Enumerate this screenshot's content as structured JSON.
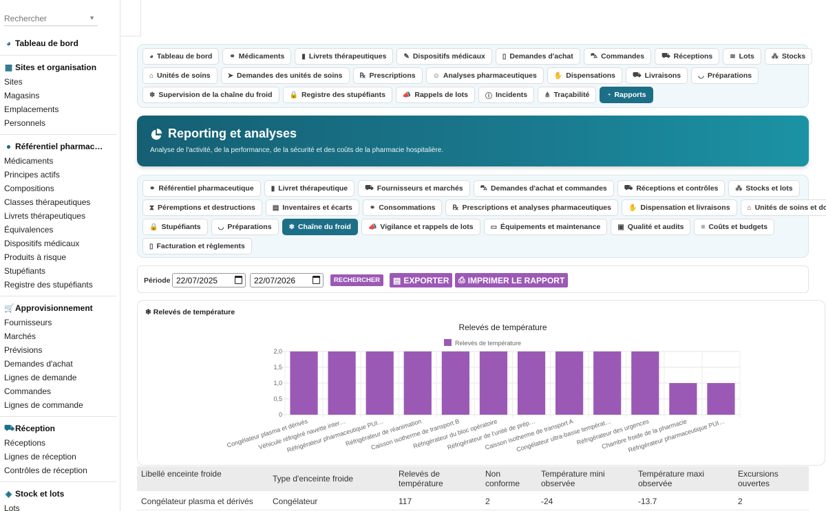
{
  "search": {
    "placeholder": "Rechercher"
  },
  "sidebar": {
    "dashboard": "Tableau de bord",
    "sections": [
      {
        "title": "Sites et organisation",
        "icon": "building-icon",
        "items": [
          "Sites",
          "Magasins",
          "Emplacements",
          "Personnels"
        ]
      },
      {
        "title": "Référentiel pharmac…",
        "icon": "pills-icon",
        "items": [
          "Médicaments",
          "Principes actifs",
          "Compositions",
          "Classes thérapeutiques",
          "Livrets thérapeutiques",
          "Équivalences",
          "Dispositifs médicaux",
          "Produits à risque",
          "Stupéfiants",
          "Registre des stupéfiants"
        ]
      },
      {
        "title": "Approvisionnement",
        "icon": "cart-icon",
        "items": [
          "Fournisseurs",
          "Marchés",
          "Prévisions",
          "Demandes d'achat",
          "Lignes de demande",
          "Commandes",
          "Lignes de commande"
        ]
      },
      {
        "title": "Réception",
        "icon": "truck-loading-icon",
        "items": [
          "Réceptions",
          "Lignes de réception",
          "Contrôles de réception"
        ]
      },
      {
        "title": "Stock et lots",
        "icon": "cubes-icon",
        "items": [
          "Lots"
        ]
      }
    ]
  },
  "nav1": {
    "rows": [
      [
        {
          "label": "Tableau de bord",
          "icon": "gauge-icon"
        },
        {
          "label": "Médicaments",
          "icon": "pills-icon"
        },
        {
          "label": "Livrets thérapeutiques",
          "icon": "book-icon"
        },
        {
          "label": "Dispositifs médicaux",
          "icon": "syringe-icon"
        },
        {
          "label": "Demandes d'achat",
          "icon": "file-icon"
        },
        {
          "label": "Commandes",
          "icon": "cart-icon"
        },
        {
          "label": "Réceptions",
          "icon": "truck-loading-icon"
        },
        {
          "label": "Lots",
          "icon": "layers-icon"
        },
        {
          "label": "Stocks",
          "icon": "cubes-icon"
        }
      ],
      [
        {
          "label": "Unités de soins",
          "icon": "bed-icon"
        },
        {
          "label": "Demandes des unités de soins",
          "icon": "send-icon"
        },
        {
          "label": "Prescriptions",
          "icon": "prescription-icon"
        },
        {
          "label": "Analyses pharmaceutiques",
          "icon": "user-check-icon"
        },
        {
          "label": "Dispensations",
          "icon": "hand-icon"
        },
        {
          "label": "Livraisons",
          "icon": "truck-icon"
        },
        {
          "label": "Préparations",
          "icon": "mortar-icon"
        }
      ],
      [
        {
          "label": "Supervision de la chaîne du froid",
          "icon": "snowflake-icon"
        },
        {
          "label": "Registre des stupéfiants",
          "icon": "lock-icon"
        },
        {
          "label": "Rappels de lots",
          "icon": "megaphone-icon"
        },
        {
          "label": "Incidents",
          "icon": "alert-icon"
        },
        {
          "label": "Traçabilité",
          "icon": "sitemap-icon"
        },
        {
          "label": "Rapports",
          "icon": "pie-icon",
          "active": true
        }
      ]
    ]
  },
  "hero": {
    "title": "Reporting et analyses",
    "subtitle": "Analyse de l'activité, de la performance, de la sécurité et des coûts de la pharmacie hospitalière."
  },
  "nav2": {
    "rows": [
      [
        {
          "label": "Référentiel pharmaceutique",
          "icon": "pills-icon"
        },
        {
          "label": "Livret thérapeutique",
          "icon": "book-icon"
        },
        {
          "label": "Fournisseurs et marchés",
          "icon": "truck-icon"
        },
        {
          "label": "Demandes d'achat et commandes",
          "icon": "cart-icon"
        },
        {
          "label": "Réceptions et contrôles",
          "icon": "truck-loading-icon"
        },
        {
          "label": "Stocks et lots",
          "icon": "cubes-icon"
        }
      ],
      [
        {
          "label": "Péremptions et destructions",
          "icon": "hourglass-icon"
        },
        {
          "label": "Inventaires et écarts",
          "icon": "clipboard-icon"
        },
        {
          "label": "Consommations",
          "icon": "pills-icon"
        },
        {
          "label": "Prescriptions et analyses pharmaceutiques",
          "icon": "prescription-icon"
        },
        {
          "label": "Dispensation et livraisons",
          "icon": "hand-icon"
        },
        {
          "label": "Unités de soins et dotations",
          "icon": "bed-icon"
        }
      ],
      [
        {
          "label": "Stupéfiants",
          "icon": "lock-icon"
        },
        {
          "label": "Préparations",
          "icon": "mortar-icon"
        },
        {
          "label": "Chaîne du froid",
          "icon": "snowflake-icon",
          "active": true
        },
        {
          "label": "Vigilance et rappels de lots",
          "icon": "megaphone-icon"
        },
        {
          "label": "Équipements et maintenance",
          "icon": "monitor-icon"
        },
        {
          "label": "Qualité et audits",
          "icon": "clipboard-check-icon"
        },
        {
          "label": "Coûts et budgets",
          "icon": "coins-icon"
        }
      ],
      [
        {
          "label": "Facturation et règlements",
          "icon": "invoice-icon"
        }
      ]
    ]
  },
  "toolbar": {
    "period_label": "Période",
    "date_from": "22/07/2025",
    "date_to": "22/07/2026",
    "search_label": "RECHERCHER",
    "export_label": "EXPORTER",
    "print_label": "IMPRIMER LE RAPPORT"
  },
  "chart_card": {
    "title": "Relevés de température",
    "icon": "snowflake-icon"
  },
  "chart_data": {
    "type": "bar",
    "title": "Relevés de température",
    "categories": [
      "Congélateur plasma et dérivés",
      "Véhicule réfrigéré navette inter…",
      "Réfrigérateur pharmaceutique PUI…",
      "Réfrigérateur de réanimation",
      "Caisson isotherme de transport B",
      "Réfrigérateur du bloc opératoire",
      "Réfrigérateur de l'unité de prép…",
      "Caisson isotherme de transport A",
      "Congélateur ultra-basse températ…",
      "Réfrigérateur des urgences",
      "Chambre froide de la pharmacie",
      "Réfrigérateur pharmaceutique PUI…"
    ],
    "series": [
      {
        "name": "Relevés de température",
        "values": [
          2,
          2,
          2,
          2,
          2,
          2,
          2,
          2,
          2,
          2,
          1,
          1
        ]
      }
    ],
    "yticks": [
      "0",
      "0,5",
      "1,0",
      "1,5",
      "2,0"
    ],
    "ylim": [
      0,
      2
    ],
    "legend_position": "top",
    "bar_color": "#9b59b6",
    "grid": true
  },
  "table": {
    "headers": [
      "Libellé enceinte froide",
      "Type d'enceinte froide",
      "Relevés de température",
      "Non conforme",
      "Température mini observée",
      "Température maxi observée",
      "Excursions ouvertes"
    ],
    "rows": [
      [
        "Congélateur plasma et dérivés",
        "Congélateur",
        "117",
        "2",
        "-24",
        "-13.7",
        "2"
      ]
    ]
  },
  "colors": {
    "accent": "#1c6f87",
    "purple": "#9b59b6"
  }
}
